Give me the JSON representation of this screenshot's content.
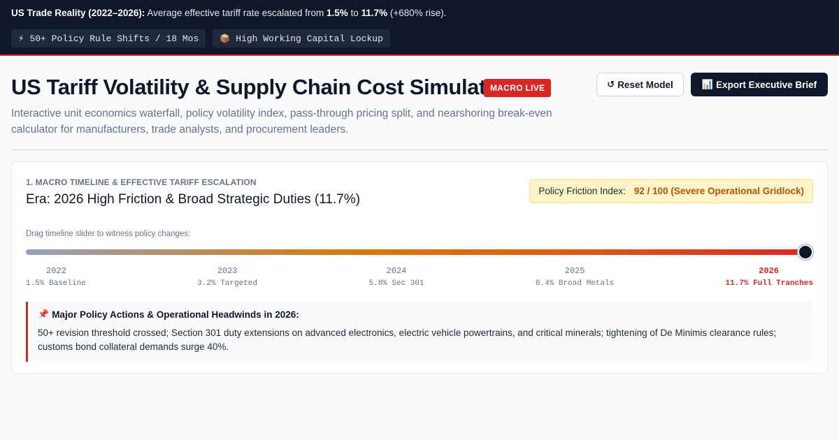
{
  "banner": {
    "lead": "US Trade Reality (2022–2026):",
    "text_1": " Average effective tariff rate escalated from ",
    "rate_from": "1.5%",
    "text_2": " to ",
    "rate_to": "11.7%",
    "text_3": " (+680% rise).",
    "tags": [
      {
        "icon": "lightning-icon",
        "glyph": "⚡",
        "label": "50+ Policy Rule Shifts / 18 Mos"
      },
      {
        "icon": "package-icon",
        "glyph": "📦",
        "label": "High Working Capital Lockup"
      }
    ]
  },
  "header": {
    "title": "US Tariff Volatility & Supply Chain Cost Simulator",
    "badge": "MACRO LIVE",
    "subtitle": "Interactive unit economics waterfall, policy volatility index, pass-through pricing split, and nearshoring break-even calculator for manufacturers, trade analysts, and procurement leaders.",
    "reset_icon": "↺",
    "reset_label": "Reset Model",
    "export_icon": "📊",
    "export_label": "Export Executive Brief"
  },
  "timeline": {
    "section_label": "1. Macro Timeline & Effective Tariff Escalation",
    "era_title": "Era: 2026 High Friction & Broad Strategic Duties (11.7%)",
    "friction_label": "Policy Friction Index:",
    "friction_value": "92 / 100 (Severe Operational Gridlock)",
    "slider_hint": "Drag timeline slider to witness policy changes:",
    "slider_position": 1.0,
    "ticks": [
      {
        "year": "2022",
        "desc": "1.5% Baseline"
      },
      {
        "year": "2023",
        "desc": "3.2% Targeted"
      },
      {
        "year": "2024",
        "desc": "5.8% Sec 301"
      },
      {
        "year": "2025",
        "desc": "8.4% Broad Metals"
      },
      {
        "year": "2026",
        "desc": "11.7% Full Tranches"
      }
    ],
    "active_year": "2026",
    "policy_title": "Major Policy Actions & Operational Headwinds in 2026:",
    "policy_body": "50+ revision threshold crossed; Section 301 duty extensions on advanced electronics, electric vehicle powertrains, and critical minerals; tightening of De Minimis clearance rules; customs bond collateral demands surge 40%."
  },
  "colors": {
    "navy": "#0f172a",
    "alert_red": "#dc2626",
    "amber": "#b45309",
    "friction_bg": "#fef3c7"
  }
}
